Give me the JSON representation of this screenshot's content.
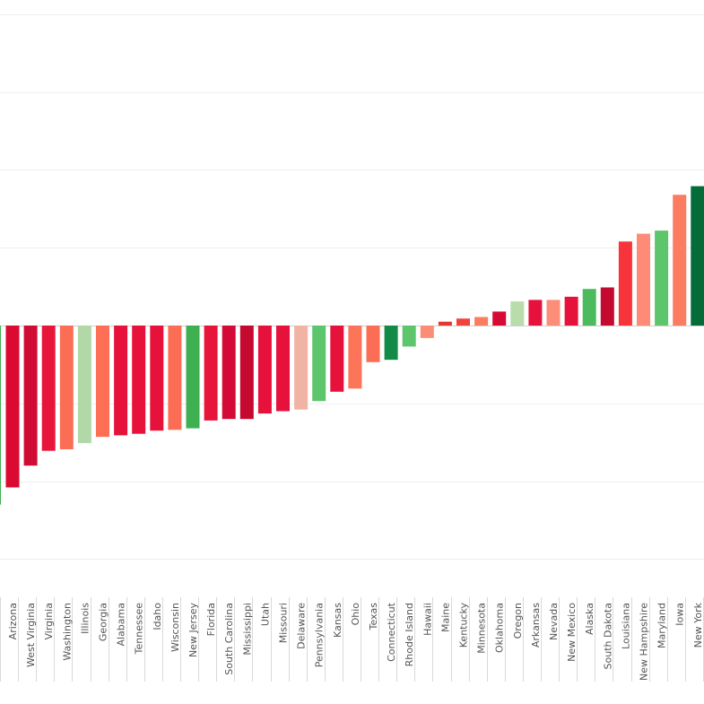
{
  "chart_data": {
    "type": "bar",
    "categories": [
      "Arizona",
      "West Virginia",
      "Virginia",
      "Washington",
      "Illinois",
      "Georgia",
      "Alabama",
      "Tennessee",
      "Idaho",
      "Wisconsin",
      "New Jersey",
      "Florida",
      "South Carolina",
      "Mississippi",
      "Utah",
      "Missouri",
      "Delaware",
      "Pennsylvania",
      "Kansas",
      "Ohio",
      "Texas",
      "Connecticut",
      "Rhode Island",
      "Hawaii",
      "Maine",
      "Kentucky",
      "Minnesota",
      "Oklahoma",
      "Oregon",
      "Arkansas",
      "Nevada",
      "New Mexico",
      "Alaska",
      "South Dakota",
      "Louisiana",
      "New Hampshire",
      "Maryland",
      "Iowa",
      "New York"
    ],
    "values": [
      -2.08,
      -1.8,
      -1.61,
      -1.59,
      -1.51,
      -1.43,
      -1.41,
      -1.39,
      -1.35,
      -1.34,
      -1.32,
      -1.22,
      -1.2,
      -1.2,
      -1.13,
      -1.1,
      -1.08,
      -0.97,
      -0.85,
      -0.81,
      -0.47,
      -0.44,
      -0.27,
      -0.16,
      0.05,
      0.09,
      0.11,
      0.18,
      0.31,
      0.33,
      0.33,
      0.37,
      0.47,
      0.49,
      1.08,
      1.18,
      1.22,
      1.68,
      1.79
    ],
    "colors": [
      "#da0a30",
      "#cf0c33",
      "#e8153b",
      "#fb6d54",
      "#b2d8a7",
      "#fd6f54",
      "#e6123b",
      "#e6123b",
      "#e6123b",
      "#fb6d54",
      "#3fb052",
      "#e8153b",
      "#d20a35",
      "#c6092f",
      "#e6123b",
      "#e6123b",
      "#f1b3a3",
      "#5dc56b",
      "#e6123b",
      "#fc7558",
      "#fb6d54",
      "#138b46",
      "#5dc56b",
      "#fc8c76",
      "#e9352f",
      "#f3413c",
      "#fb7c61",
      "#d70a35",
      "#b8dcaa",
      "#e6123b",
      "#fc8d77",
      "#e6123b",
      "#4cbb5e",
      "#c40a2e",
      "#f8333a",
      "#fd8b77",
      "#5dc56b",
      "#fb7c61",
      "#036c38"
    ],
    "partial_left_bar": {
      "value": -2.3,
      "color": "#3fb052"
    },
    "ylim": [
      -3.05,
      4.0
    ],
    "y_gridlines": [
      4,
      3,
      2,
      1,
      0,
      -1,
      -2,
      -3
    ],
    "title": "",
    "xlabel": "",
    "ylabel": "",
    "grid": true,
    "legend": "none"
  }
}
